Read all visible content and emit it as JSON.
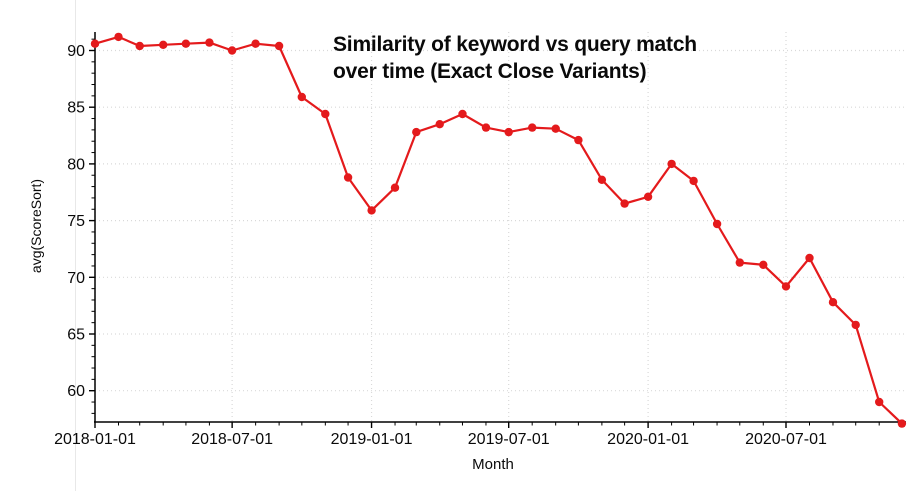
{
  "page": {
    "background": "#ffffff"
  },
  "chart_data": {
    "type": "line",
    "title": "Similarity of keyword vs query match over time (Exact Close Variants)",
    "title_lines": [
      "Similarity of keyword vs query match",
      "over time (Exact Close Variants)"
    ],
    "xlabel": "Month",
    "ylabel": "avg(ScoreSort)",
    "x": [
      "2018-01-01",
      "2018-02-01",
      "2018-03-01",
      "2018-04-01",
      "2018-05-01",
      "2018-06-01",
      "2018-07-01",
      "2018-08-01",
      "2018-09-01",
      "2018-10-01",
      "2018-11-01",
      "2018-12-01",
      "2019-01-01",
      "2019-02-01",
      "2019-03-01",
      "2019-04-01",
      "2019-05-01",
      "2019-06-01",
      "2019-07-01",
      "2019-08-01",
      "2019-09-01",
      "2019-10-01",
      "2019-11-01",
      "2019-12-01",
      "2020-01-01",
      "2020-02-01",
      "2020-03-01",
      "2020-04-01",
      "2020-05-01",
      "2020-06-01",
      "2020-07-01",
      "2020-08-01",
      "2020-09-01",
      "2020-10-01",
      "2020-11-01",
      "2020-12-01"
    ],
    "values": [
      90.6,
      91.2,
      90.4,
      90.5,
      90.6,
      90.7,
      90.0,
      90.6,
      90.4,
      85.9,
      84.4,
      78.8,
      75.9,
      77.9,
      82.8,
      83.5,
      84.4,
      83.2,
      82.8,
      83.2,
      83.1,
      82.1,
      78.6,
      76.5,
      77.1,
      80.0,
      78.5,
      74.7,
      71.3,
      71.1,
      69.2,
      71.7,
      67.8,
      65.8,
      59.0,
      57.1
    ],
    "x_tick_labels": [
      "2018-01-01",
      "2018-07-01",
      "2019-01-01",
      "2019-07-01",
      "2020-01-01",
      "2020-07-01"
    ],
    "y_ticks": [
      60,
      65,
      70,
      75,
      80,
      85,
      90
    ],
    "y_minor_tick_step": 1,
    "ylim": [
      57,
      91.6
    ],
    "grid": "dotted, at major ticks",
    "legend": "none",
    "marker": "filled-circle",
    "colors": {
      "series": "#e41a1c",
      "grid": "#d9d9d9",
      "axis": "#000000",
      "text": "#0a0a0a"
    }
  }
}
